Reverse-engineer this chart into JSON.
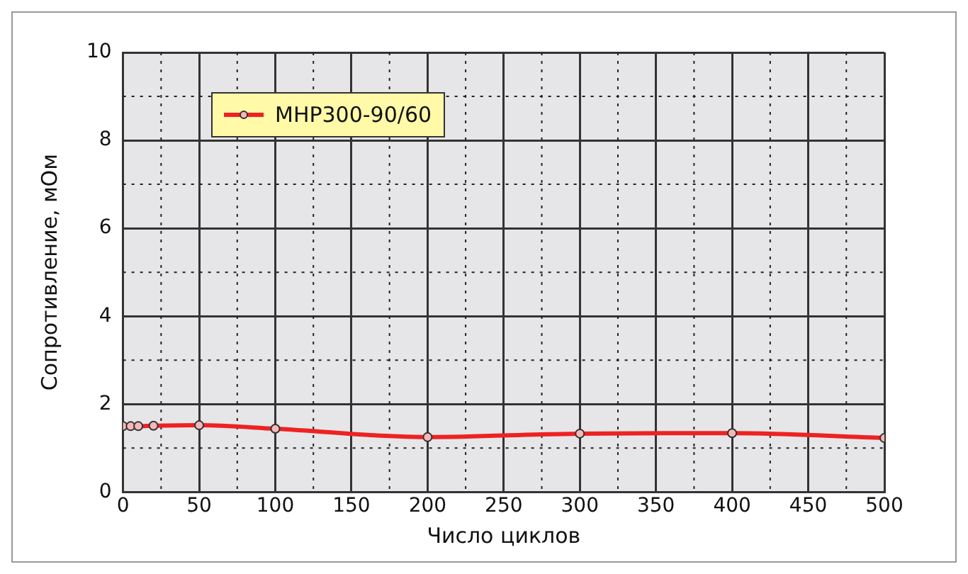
{
  "chart_data": {
    "type": "line",
    "xlabel": "Число циклов",
    "ylabel": "Сопротивление, мОм",
    "x": [
      0,
      5,
      10,
      20,
      50,
      100,
      200,
      300,
      400,
      500
    ],
    "series": [
      {
        "name": "МНР300-90/60",
        "color": "#ee2222",
        "values": [
          1.5,
          1.5,
          1.5,
          1.51,
          1.52,
          1.44,
          1.25,
          1.33,
          1.34,
          1.23
        ]
      }
    ],
    "xlim": [
      0,
      500
    ],
    "xticks": [
      0,
      50,
      100,
      150,
      200,
      250,
      300,
      350,
      400,
      450,
      500
    ],
    "ylim": [
      0,
      10
    ],
    "yticks": [
      0,
      2,
      4,
      6,
      8,
      10
    ],
    "grid": true,
    "legend": "top left",
    "marker": "circle",
    "line_style": "solid"
  }
}
